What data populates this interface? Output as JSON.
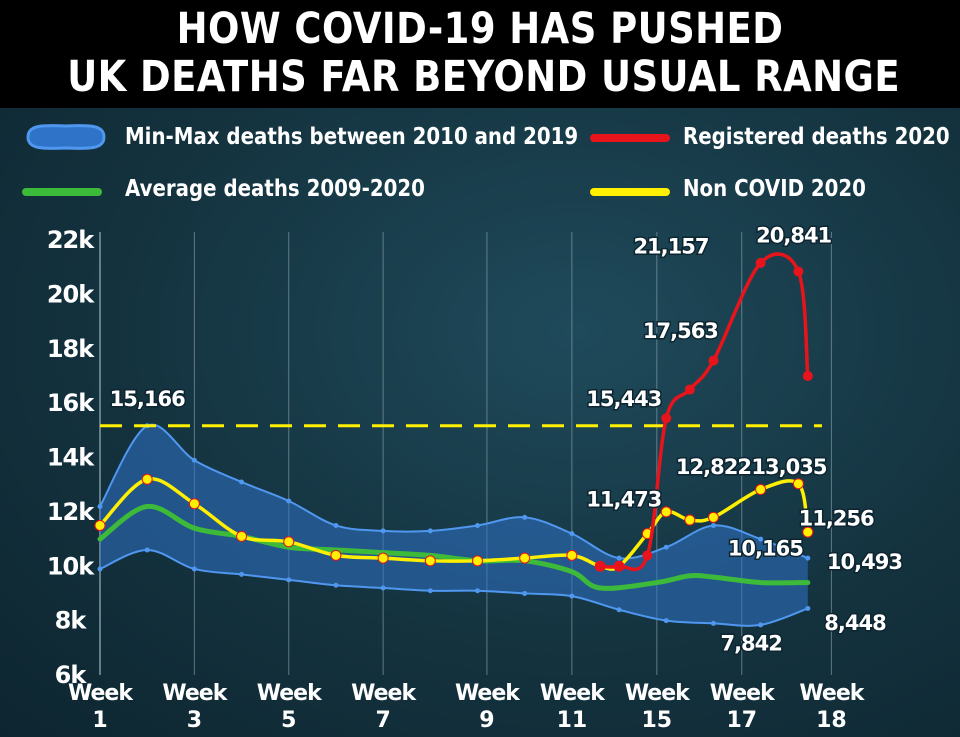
{
  "title": [
    "HOW COVID-19 HAS PUSHED",
    "UK DEATHS FAR BEYOND USUAL RANGE"
  ],
  "colors": {
    "band_fill": "#2f73c9",
    "band_stroke": "#4f97ef",
    "registered": "#e8141c",
    "average": "#3dba3a",
    "non_covid": "#ffef00",
    "dashed": "#ffef00",
    "grid": "#8fa8b0"
  },
  "chart_data": {
    "type": "line",
    "title": "HOW COVID-19 HAS PUSHED UK DEATHS FAR BEYOND USUAL RANGE",
    "xlabel": "",
    "ylabel": "",
    "x_ticks": [
      {
        "l1": "Week",
        "l2": "1",
        "x": 1
      },
      {
        "l1": "Week",
        "l2": "3",
        "x": 3
      },
      {
        "l1": "Week",
        "l2": "5",
        "x": 5
      },
      {
        "l1": "Week",
        "l2": "7",
        "x": 7
      },
      {
        "l1": "Week",
        "l2": "9",
        "x": 9.2
      },
      {
        "l1": "Week",
        "l2": "11",
        "x": 11
      },
      {
        "l1": "Week",
        "l2": "15",
        "x": 12.8
      },
      {
        "l1": "Week",
        "l2": "17",
        "x": 14.6
      },
      {
        "l1": "Week",
        "l2": "18",
        "x": 16.5
      }
    ],
    "y_ticks": [
      "6k",
      "8k",
      "10k",
      "12k",
      "14k",
      "16k",
      "18k",
      "20k",
      "22k"
    ],
    "y_tick_values": [
      6000,
      8000,
      10000,
      12000,
      14000,
      16000,
      18000,
      20000,
      22000
    ],
    "ylim": [
      6000,
      22000
    ],
    "xlim": [
      1,
      17
    ],
    "grid": "vertical",
    "legend": [
      {
        "key": "band",
        "label": "Min-Max deaths between 2010 and 2019"
      },
      {
        "key": "registered",
        "label": "Registered deaths 2020"
      },
      {
        "key": "average",
        "label": "Average deaths 2009-2020"
      },
      {
        "key": "non_covid",
        "label": "Non COVID 2020"
      }
    ],
    "band": {
      "x": [
        1,
        2,
        3,
        4,
        5,
        6,
        7,
        8,
        9,
        10,
        11,
        12,
        13,
        14,
        15,
        16
      ],
      "max": [
        12200,
        15166,
        13900,
        13100,
        12400,
        11500,
        11300,
        11300,
        11500,
        11800,
        11200,
        10300,
        10700,
        11500,
        11000,
        10300
      ],
      "min": [
        9900,
        10600,
        9900,
        9700,
        9500,
        9300,
        9200,
        9100,
        9100,
        9000,
        8900,
        8400,
        8000,
        7900,
        7842,
        8448
      ]
    },
    "series": [
      {
        "key": "average",
        "name": "Average deaths 2009-2020",
        "x": [
          1,
          2,
          3,
          4,
          5,
          6,
          7,
          8,
          9,
          10,
          11,
          11.6,
          12.8,
          13.5,
          14,
          15,
          15.8,
          16
        ],
        "y": [
          11000,
          12200,
          11400,
          11100,
          10700,
          10600,
          10500,
          10400,
          10200,
          10200,
          9800,
          9200,
          9400,
          9650,
          9600,
          9400,
          9400,
          9400
        ]
      },
      {
        "key": "non_covid",
        "name": "Non COVID 2020",
        "x": [
          1,
          2,
          3,
          4,
          5,
          6,
          7,
          8,
          9,
          10,
          11,
          11.6,
          12,
          12.6,
          13,
          13.5,
          14,
          15,
          15.8,
          16
        ],
        "y": [
          11500,
          13200,
          12300,
          11100,
          10900,
          10400,
          10300,
          10200,
          10200,
          10300,
          10400,
          10000,
          10000,
          11200,
          12000,
          11700,
          11800,
          12822,
          13035,
          11256
        ]
      },
      {
        "key": "registered",
        "name": "Registered deaths 2020",
        "x": [
          11.6,
          12,
          12.6,
          13,
          13.5,
          14,
          15,
          15.8,
          16
        ],
        "y": [
          10000,
          10000,
          10400,
          15443,
          16500,
          17563,
          21157,
          20841,
          17000
        ]
      }
    ],
    "reference_line": {
      "y": 15166,
      "style": "dashed"
    },
    "annotations": [
      {
        "text": "15,166",
        "x": 2.0,
        "y": 15900
      },
      {
        "text": "15,443",
        "x": 12.1,
        "y": 15900
      },
      {
        "text": "17,563",
        "x": 13.3,
        "y": 18400
      },
      {
        "text": "21,157",
        "x": 13.1,
        "y": 21500
      },
      {
        "text": "20,841",
        "x": 15.7,
        "y": 21900
      },
      {
        "text": "11,473",
        "x": 12.1,
        "y": 12200
      },
      {
        "text": "12,822",
        "x": 14.0,
        "y": 13400
      },
      {
        "text": "13,035",
        "x": 15.6,
        "y": 13400
      },
      {
        "text": "11,256",
        "x": 16.6,
        "y": 11500
      },
      {
        "text": "10,165",
        "x": 15.1,
        "y": 10400
      },
      {
        "text": "10,493",
        "x": 17.2,
        "y": 9900
      },
      {
        "text": "8,448",
        "x": 17.0,
        "y": 7650
      },
      {
        "text": "7,842",
        "x": 14.8,
        "y": 6900
      }
    ]
  }
}
